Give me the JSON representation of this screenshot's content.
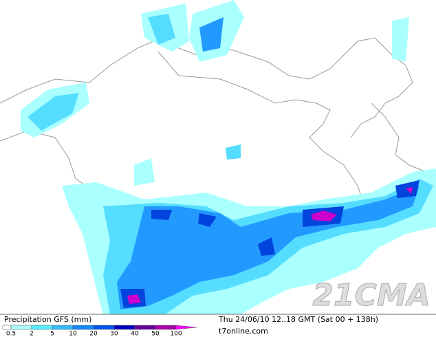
{
  "legend": {
    "title": "Precipitation GFS (mm)",
    "labels": [
      0.5,
      2,
      5,
      10,
      20,
      30,
      40,
      50,
      100
    ],
    "colors": [
      "#ffffff",
      "#aaffff",
      "#55eeff",
      "#33bbff",
      "#1188ff",
      "#0055ee",
      "#0000bb",
      "#660099",
      "#aa00aa",
      "#ff00ff"
    ]
  },
  "info": {
    "time": "Thu 24/06/10 12..18 GMT (Sat 00 + 138h)",
    "source": "t7online.com"
  },
  "watermark": "21CMA"
}
